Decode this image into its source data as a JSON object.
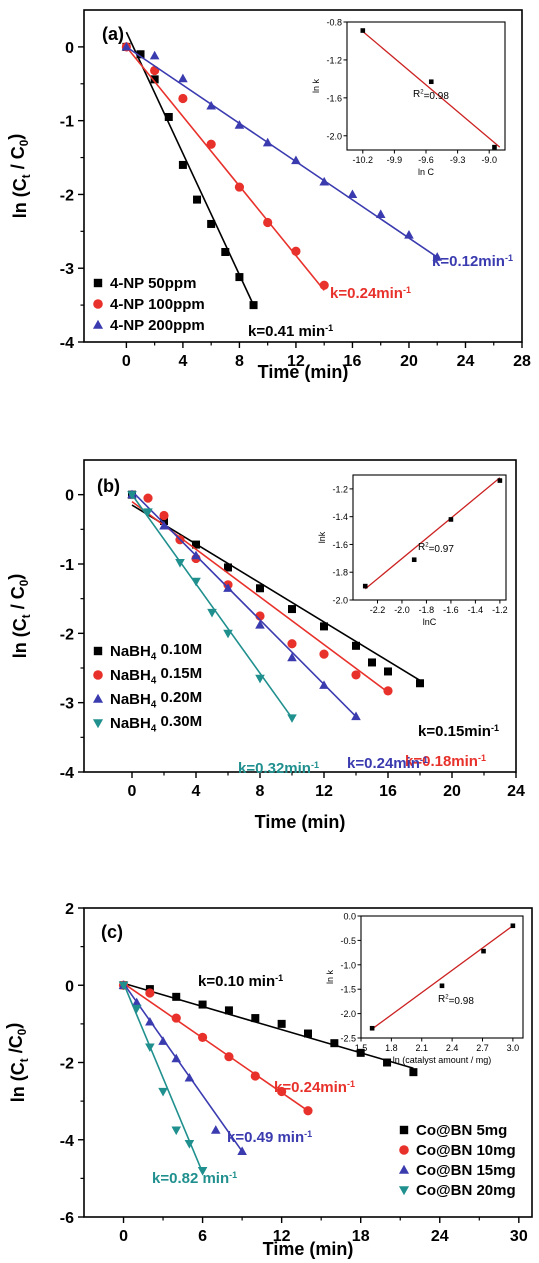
{
  "chart_data": [
    {
      "type": "scatter",
      "panel_label": "(a)",
      "xlabel": "Time (min)",
      "ylabel": {
        "main": "ln (C",
        "sub1": "t",
        "mid": " / C",
        "sub2": "0",
        "end": ")"
      },
      "xlim": [
        -3,
        28
      ],
      "ylim": [
        -4,
        0.5
      ],
      "xticks": [
        "0",
        "4",
        "8",
        "12",
        "16",
        "20",
        "24",
        "28"
      ],
      "yticks": [
        "0",
        "-1",
        "-2",
        "-3",
        "-4"
      ],
      "legend": "bottom-left",
      "series": [
        {
          "name": "4-NP 50ppm",
          "marker": "square",
          "color": "#000000",
          "x": [
            0,
            1,
            2,
            3,
            4,
            5,
            6,
            7,
            8,
            9
          ],
          "y": [
            0,
            -0.1,
            -0.44,
            -0.95,
            -1.6,
            -2.07,
            -2.4,
            -2.78,
            -3.12,
            -3.5
          ],
          "fit": [
            [
              0,
              0.2
            ],
            [
              9,
              -3.5
            ]
          ],
          "k_label": {
            "main": "k=0.41 min",
            "sup": "-1"
          }
        },
        {
          "name": "4-NP 100ppm",
          "marker": "circle",
          "color": "#e8312b",
          "x": [
            0,
            2,
            4,
            6,
            8,
            10,
            12,
            14
          ],
          "y": [
            0,
            -0.32,
            -0.7,
            -1.32,
            -1.9,
            -2.38,
            -2.77,
            -3.23
          ],
          "fit": [
            [
              0,
              0
            ],
            [
              14,
              -3.3
            ]
          ],
          "k_label": {
            "main": "k=0.24min",
            "sup": "-1"
          }
        },
        {
          "name": "4-NP 200ppm",
          "marker": "triangle",
          "color": "#3b3bb0",
          "x": [
            0,
            2,
            4,
            6,
            8,
            10,
            12,
            14,
            16,
            18,
            20,
            22
          ],
          "y": [
            0,
            -0.12,
            -0.43,
            -0.8,
            -1.06,
            -1.3,
            -1.54,
            -1.83,
            -2.0,
            -2.27,
            -2.55,
            -2.85
          ],
          "fit": [
            [
              0,
              0
            ],
            [
              22,
              -2.85
            ]
          ],
          "k_label": {
            "main": "k=0.12min",
            "sup": "-1"
          }
        }
      ],
      "inset": {
        "xlabel": "ln C",
        "ylabel": "ln k",
        "xlim": [
          -10.35,
          -8.85
        ],
        "ylim": [
          -2.15,
          -0.8
        ],
        "xticks": [
          "-10.2",
          "-9.9",
          "-9.6",
          "-9.3",
          "-9.0"
        ],
        "yticks": [
          "-0.8",
          "-1.2",
          "-1.6",
          "-2.0"
        ],
        "points": {
          "x": [
            -10.2,
            -9.55,
            -8.95
          ],
          "y": [
            -0.89,
            -1.43,
            -2.12
          ]
        },
        "fit": [
          [
            -10.2,
            -0.9
          ],
          [
            -8.9,
            -2.12
          ]
        ],
        "r2": {
          "main": "R",
          "sup": "2",
          "end": "=0.98"
        }
      }
    },
    {
      "type": "scatter",
      "panel_label": "(b)",
      "xlabel": "Time (min)",
      "ylabel": {
        "main": "ln (C",
        "sub1": "t",
        "mid": " / C",
        "sub2": "0",
        "end": ")"
      },
      "xlim": [
        -3,
        24
      ],
      "ylim": [
        -4,
        0.5
      ],
      "xticks": [
        "0",
        "4",
        "8",
        "12",
        "16",
        "20",
        "24"
      ],
      "yticks": [
        "0",
        "-1",
        "-2",
        "-3",
        "-4"
      ],
      "legend": "bottom-left",
      "series": [
        {
          "name": {
            "pre": "NaBH",
            "sub": "4",
            "post": " 0.10M"
          },
          "marker": "square",
          "color": "#000000",
          "x": [
            0,
            2,
            4,
            6,
            8,
            10,
            12,
            14,
            15,
            16,
            18
          ],
          "y": [
            0,
            -0.38,
            -0.72,
            -1.05,
            -1.35,
            -1.65,
            -1.9,
            -2.18,
            -2.42,
            -2.55,
            -2.72
          ],
          "fit": [
            [
              0,
              -0.15
            ],
            [
              18,
              -2.68
            ]
          ],
          "k_label": {
            "main": "k=0.15min",
            "sup": "-1"
          }
        },
        {
          "name": {
            "pre": "NaBH",
            "sub": "4",
            "post": " 0.15M"
          },
          "marker": "circle",
          "color": "#e8312b",
          "x": [
            1,
            2,
            3,
            4,
            6,
            8,
            10,
            12,
            14,
            16
          ],
          "y": [
            -0.05,
            -0.3,
            -0.65,
            -0.92,
            -1.3,
            -1.75,
            -2.15,
            -2.3,
            -2.6,
            -2.83
          ],
          "fit": [
            [
              0,
              -0.1
            ],
            [
              16,
              -2.85
            ]
          ],
          "k_label": {
            "main": "k=0.18min",
            "sup": "-1"
          }
        },
        {
          "name": {
            "pre": "NaBH",
            "sub": "4",
            "post": " 0.20M"
          },
          "marker": "triangle",
          "color": "#3b3bb0",
          "x": [
            0,
            2,
            4,
            6,
            8,
            10,
            12,
            14
          ],
          "y": [
            0,
            -0.45,
            -0.88,
            -1.35,
            -1.88,
            -2.35,
            -2.75,
            -3.2
          ],
          "fit": [
            [
              0,
              0.05
            ],
            [
              14,
              -3.2
            ]
          ],
          "k_label": {
            "main": "k=0.24min",
            "sup": "-1"
          }
        },
        {
          "name": {
            "pre": "NaBH",
            "sub": "4",
            "post": " 0.30M"
          },
          "marker": "triangle-down",
          "color": "#20908e",
          "x": [
            0,
            1,
            3,
            4,
            5,
            6,
            8,
            10
          ],
          "y": [
            0,
            -0.25,
            -0.98,
            -1.25,
            -1.7,
            -2.0,
            -2.65,
            -3.22
          ],
          "fit": [
            [
              0,
              0
            ],
            [
              10,
              -3.22
            ]
          ],
          "k_label": {
            "main": "k=0.32min",
            "sup": "-1"
          }
        }
      ],
      "inset": {
        "xlabel": "lnC",
        "ylabel": "lnk",
        "xlim": [
          -2.4,
          -1.15
        ],
        "ylim": [
          -2.0,
          -1.1
        ],
        "xticks": [
          "-2.2",
          "-2.0",
          "-1.8",
          "-1.6",
          "-1.4",
          "-1.2"
        ],
        "yticks": [
          "-1.2",
          "-1.4",
          "-1.6",
          "-1.8",
          "-2.0"
        ],
        "points": {
          "x": [
            -2.3,
            -1.9,
            -1.6,
            -1.2
          ],
          "y": [
            -1.9,
            -1.71,
            -1.42,
            -1.14
          ]
        },
        "fit": [
          [
            -2.3,
            -1.92
          ],
          [
            -1.2,
            -1.12
          ]
        ],
        "r2": {
          "main": "R",
          "sup": "2",
          "end": "=0.97"
        }
      }
    },
    {
      "type": "scatter",
      "panel_label": "(c)",
      "xlabel": "Time (min)",
      "ylabel": {
        "main": "ln (C",
        "sub1": "t",
        "mid": " /C",
        "sub2": "0",
        "end": ")"
      },
      "xlim": [
        -3,
        31
      ],
      "ylim": [
        -6,
        2
      ],
      "xticks": [
        "0",
        "6",
        "12",
        "18",
        "24",
        "30"
      ],
      "yticks": [
        "2",
        "0",
        "-2",
        "-4",
        "-6"
      ],
      "legend": "bottom-right",
      "series": [
        {
          "name": "Co@BN 5mg",
          "marker": "square",
          "color": "#000000",
          "x": [
            0,
            2,
            4,
            6,
            8,
            10,
            12,
            14,
            16,
            18,
            20,
            22
          ],
          "y": [
            0,
            -0.1,
            -0.3,
            -0.5,
            -0.65,
            -0.85,
            -1.0,
            -1.25,
            -1.5,
            -1.75,
            -2.0,
            -2.25
          ],
          "fit": [
            [
              0,
              0.05
            ],
            [
              22,
              -2.15
            ]
          ],
          "k_label": {
            "main": "k=0.10 min",
            "sup": "-1"
          }
        },
        {
          "name": "Co@BN 10mg",
          "marker": "circle",
          "color": "#e8312b",
          "x": [
            0,
            2,
            4,
            6,
            8,
            10,
            12,
            14
          ],
          "y": [
            0,
            -0.2,
            -0.85,
            -1.35,
            -1.85,
            -2.35,
            -2.75,
            -3.25
          ],
          "fit": [
            [
              0,
              0.05
            ],
            [
              14,
              -3.25
            ]
          ],
          "k_label": {
            "main": "k=0.24min",
            "sup": "-1"
          }
        },
        {
          "name": "Co@BN 15mg",
          "marker": "triangle",
          "color": "#3b3bb0",
          "x": [
            0,
            1,
            2,
            3,
            4,
            5,
            7,
            9
          ],
          "y": [
            0,
            -0.45,
            -0.95,
            -1.45,
            -1.9,
            -2.4,
            -3.75,
            -4.3
          ],
          "fit": [
            [
              0,
              0.05
            ],
            [
              9,
              -4.3
            ]
          ],
          "k_label": {
            "main": "k=0.49 min",
            "sup": "-1"
          }
        },
        {
          "name": "Co@BN 20mg",
          "marker": "triangle-down",
          "color": "#20908e",
          "x": [
            0,
            1,
            2,
            3,
            4,
            5,
            6
          ],
          "y": [
            0,
            -0.6,
            -1.6,
            -2.75,
            -3.75,
            -4.1,
            -4.8
          ],
          "fit": [
            [
              0,
              0.05
            ],
            [
              6,
              -4.85
            ]
          ],
          "k_label": {
            "main": "k=0.82 min",
            "sup": "-1"
          }
        }
      ],
      "inset": {
        "xlabel": "ln (catalyst amount / mg)",
        "ylabel": "ln k",
        "xlim": [
          1.5,
          3.1
        ],
        "ylim": [
          -2.5,
          0
        ],
        "xticks": [
          "1.5",
          "1.8",
          "2.1",
          "2.4",
          "2.7",
          "3.0"
        ],
        "yticks": [
          "0.0",
          "-0.5",
          "-1.0",
          "-1.5",
          "-2.0",
          "-2.5"
        ],
        "points": {
          "x": [
            1.61,
            2.3,
            2.71,
            3.0
          ],
          "y": [
            -2.3,
            -1.43,
            -0.72,
            -0.2
          ]
        },
        "fit": [
          [
            1.6,
            -2.33
          ],
          [
            3.0,
            -0.2
          ]
        ],
        "r2": {
          "main": "R",
          "sup": "2",
          "end": "=0.98"
        }
      }
    }
  ]
}
